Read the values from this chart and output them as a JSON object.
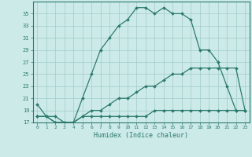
{
  "xlabel": "Humidex (Indice chaleur)",
  "x": [
    0,
    1,
    2,
    3,
    4,
    5,
    6,
    7,
    8,
    9,
    10,
    11,
    12,
    13,
    14,
    15,
    16,
    17,
    18,
    19,
    20,
    21,
    22,
    23
  ],
  "line1": [
    20,
    18,
    18,
    17,
    17,
    21,
    25,
    29,
    31,
    33,
    34,
    36,
    36,
    35,
    36,
    35,
    35,
    34,
    29,
    29,
    27,
    23,
    19,
    19
  ],
  "line2": [
    18,
    18,
    17,
    17,
    17,
    18,
    18,
    18,
    18,
    18,
    18,
    18,
    18,
    19,
    19,
    19,
    19,
    19,
    19,
    19,
    19,
    19,
    19,
    19
  ],
  "line3": [
    18,
    18,
    17,
    17,
    17,
    18,
    19,
    19,
    20,
    21,
    21,
    22,
    23,
    23,
    24,
    25,
    25,
    26,
    26,
    26,
    26,
    26,
    26,
    19
  ],
  "line_color": "#2d7b6e",
  "bg_color": "#cceae7",
  "grid_color": "#a0ccc8",
  "ylim": [
    17,
    37
  ],
  "yticks": [
    17,
    19,
    21,
    23,
    25,
    27,
    29,
    31,
    33,
    35
  ],
  "ytick_labels": [
    "17",
    "19",
    "21",
    "23",
    "25",
    "27",
    "29",
    "31",
    "33",
    "35"
  ],
  "xlim_min": -0.5,
  "xlim_max": 23.5,
  "xticks": [
    0,
    1,
    2,
    3,
    4,
    5,
    6,
    7,
    8,
    9,
    10,
    11,
    12,
    13,
    14,
    15,
    16,
    17,
    18,
    19,
    20,
    21,
    22,
    23
  ]
}
